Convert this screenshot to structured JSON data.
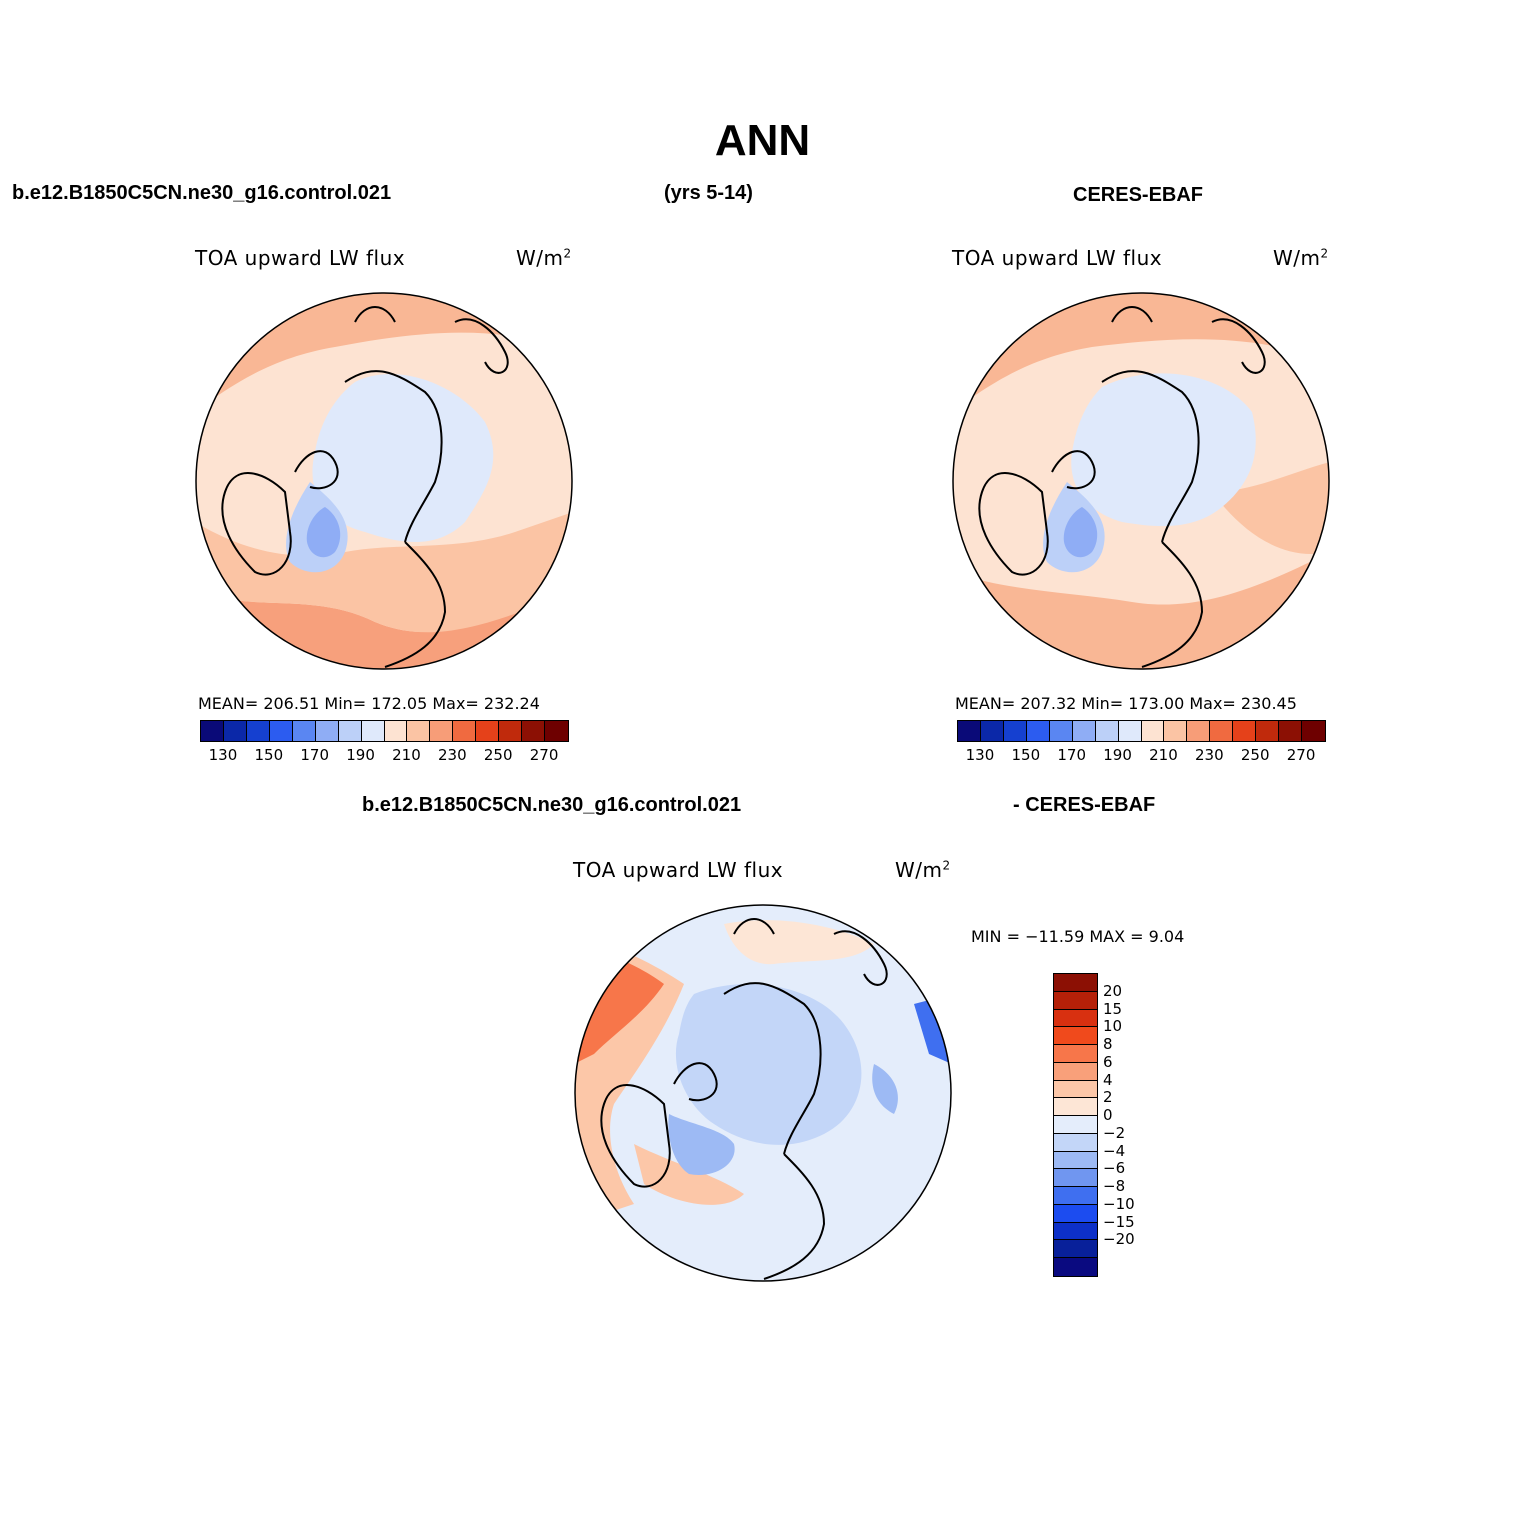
{
  "page_title": "ANN",
  "header": {
    "left": "b.e12.B1850C5CN.ne30_g16.control.021",
    "center": "(yrs 5-14)",
    "right": "CERES-EBAF"
  },
  "diff_header": {
    "left": "b.e12.B1850C5CN.ne30_g16.control.021",
    "right": "- CERES-EBAF"
  },
  "panels": [
    {
      "variable": "TOA upward LW flux",
      "units": "W/m",
      "units_sup": "2",
      "stats": "MEAN= 206.51   Min= 172.05   Max= 232.24"
    },
    {
      "variable": "TOA upward LW flux",
      "units": "W/m",
      "units_sup": "2",
      "stats": "MEAN= 207.32   Min= 173.00   Max= 230.45"
    },
    {
      "variable": "TOA upward LW flux",
      "units": "W/m",
      "units_sup": "2",
      "stats": "MIN = −11.59 MAX =    9.04"
    }
  ],
  "colorbar_abs": {
    "colors": [
      "#0a0a78",
      "#0b28a8",
      "#1540d0",
      "#2c5cf0",
      "#5a86f2",
      "#8fadf5",
      "#bcd0f8",
      "#dfe9fb",
      "#fde3d2",
      "#fbc4a4",
      "#f79d78",
      "#f06a40",
      "#e5411a",
      "#c02a0c",
      "#8c1004",
      "#6e0000"
    ],
    "labels": [
      "130",
      "150",
      "170",
      "190",
      "210",
      "230",
      "250",
      "270"
    ]
  },
  "colorbar_diff": {
    "colors": [
      "#8c1004",
      "#b52008",
      "#d83010",
      "#f04a1c",
      "#f7764a",
      "#f9a07a",
      "#fcc7a8",
      "#fde6d6",
      "#e4edfb",
      "#c3d6f8",
      "#9dbaf4",
      "#7096f0",
      "#3f6ff0",
      "#1c4cf0",
      "#0d30c8",
      "#08209a",
      "#0a0a80"
    ],
    "labels": [
      "20",
      "15",
      "10",
      "8",
      "6",
      "4",
      "2",
      "0",
      "−2",
      "−4",
      "−6",
      "−8",
      "−10",
      "−15",
      "−20"
    ]
  },
  "legend_icons": [
    "polar-map-icon"
  ]
}
